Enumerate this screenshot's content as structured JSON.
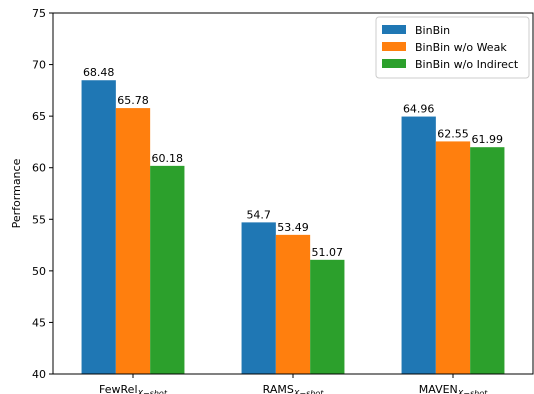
{
  "chart_data": {
    "type": "bar",
    "categories": [
      {
        "main": "FewRel",
        "sub": "X−shot"
      },
      {
        "main": "RAMS",
        "sub": "X−shot"
      },
      {
        "main": "MAVEN",
        "sub": "X−shot"
      }
    ],
    "series": [
      {
        "name": "BinBin",
        "color": "#1f77b4",
        "values": [
          68.48,
          54.7,
          64.96
        ],
        "labels": [
          "68.48",
          "54.7",
          "64.96"
        ]
      },
      {
        "name": "BinBin w/o Weak",
        "color": "#ff7f0e",
        "values": [
          65.78,
          53.49,
          62.55
        ],
        "labels": [
          "65.78",
          "53.49",
          "62.55"
        ]
      },
      {
        "name": "BinBin w/o Indirect",
        "color": "#2ca02c",
        "values": [
          60.18,
          51.07,
          61.99
        ],
        "labels": [
          "60.18",
          "51.07",
          "61.99"
        ]
      }
    ],
    "ylabel": "Performance",
    "ylim": [
      40,
      75
    ],
    "yticks": [
      "40",
      "45",
      "50",
      "55",
      "60",
      "65",
      "70",
      "75"
    ],
    "legend_position": "top-right",
    "grid": false
  }
}
